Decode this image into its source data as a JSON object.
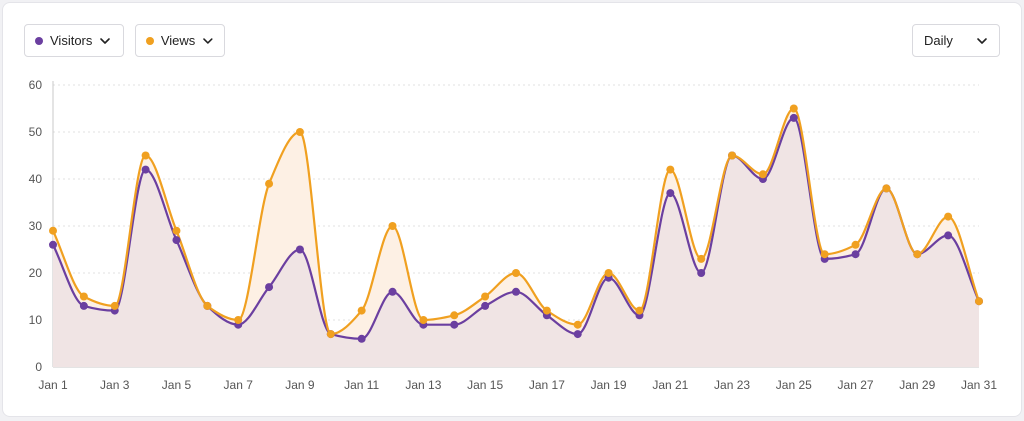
{
  "controls": {
    "visitors_label": "Visitors",
    "views_label": "Views",
    "interval_value": "Daily"
  },
  "colors": {
    "visitors": "#6b3fa0",
    "views": "#f0a020",
    "area": "#f0e4e4",
    "views_area": "#fdf0e4",
    "grid": "#e2e2e2",
    "axis": "#555555"
  },
  "chart_data": {
    "type": "area",
    "title": "",
    "xlabel": "",
    "ylabel": "",
    "ylim": [
      0,
      60
    ],
    "yticks": [
      0,
      10,
      20,
      30,
      40,
      50,
      60
    ],
    "grid": true,
    "x": [
      "Jan 1",
      "Jan 2",
      "Jan 3",
      "Jan 4",
      "Jan 5",
      "Jan 6",
      "Jan 7",
      "Jan 8",
      "Jan 9",
      "Jan 10",
      "Jan 11",
      "Jan 12",
      "Jan 13",
      "Jan 14",
      "Jan 15",
      "Jan 16",
      "Jan 17",
      "Jan 18",
      "Jan 19",
      "Jan 20",
      "Jan 21",
      "Jan 22",
      "Jan 23",
      "Jan 24",
      "Jan 25",
      "Jan 26",
      "Jan 27",
      "Jan 28",
      "Jan 29",
      "Jan 30",
      "Jan 31"
    ],
    "xtick_labels": [
      "Jan 1",
      "Jan 3",
      "Jan 5",
      "Jan 7",
      "Jan 9",
      "Jan 11",
      "Jan 13",
      "Jan 15",
      "Jan 17",
      "Jan 19",
      "Jan 21",
      "Jan 23",
      "Jan 25",
      "Jan 27",
      "Jan 29",
      "Jan 31"
    ],
    "series": [
      {
        "name": "Visitors",
        "values": [
          26,
          13,
          12,
          42,
          27,
          13,
          9,
          17,
          25,
          7,
          6,
          16,
          9,
          9,
          13,
          16,
          11,
          7,
          19,
          11,
          37,
          20,
          45,
          40,
          53,
          23,
          24,
          38,
          24,
          28,
          14
        ]
      },
      {
        "name": "Views",
        "values": [
          29,
          15,
          13,
          45,
          29,
          13,
          10,
          39,
          50,
          7,
          12,
          30,
          10,
          11,
          15,
          20,
          12,
          9,
          20,
          12,
          42,
          23,
          45,
          41,
          55,
          24,
          26,
          38,
          24,
          32,
          14
        ]
      }
    ]
  }
}
